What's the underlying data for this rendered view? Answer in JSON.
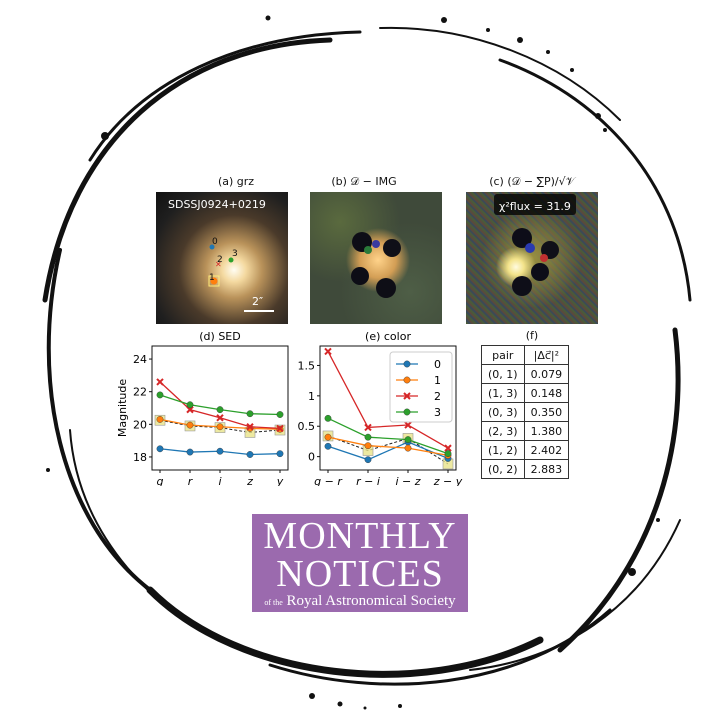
{
  "panels": {
    "a": {
      "title": "(a) grz",
      "object_label": "SDSSJ0924+0219",
      "scale_label": "2″",
      "source_labels": [
        "0",
        "1",
        "2",
        "3"
      ]
    },
    "b": {
      "title": "(b) 𝒟 − IMG"
    },
    "c": {
      "title": "(c) (𝒟 − ∑P)/√𝒱",
      "chi_label": "χ²flux = 31.9"
    },
    "f": {
      "title": "(f)"
    }
  },
  "table": {
    "headers": [
      "pair",
      "|Δc⃗|²"
    ],
    "rows": [
      [
        "(0, 1)",
        "0.079"
      ],
      [
        "(1, 3)",
        "0.148"
      ],
      [
        "(0, 3)",
        "0.350"
      ],
      [
        "(2, 3)",
        "1.380"
      ],
      [
        "(1, 2)",
        "2.402"
      ],
      [
        "(0, 2)",
        "2.883"
      ]
    ]
  },
  "logo": {
    "line1": "MONTHLY",
    "line2": "NOTICES",
    "line3_small": "of the",
    "line3": "Royal Astronomical Society"
  },
  "colors": {
    "series": [
      "#1f77b4",
      "#ff7f0e",
      "#d62728",
      "#2ca02c"
    ],
    "logo_bg": "#9b6aae"
  },
  "chart_data": [
    {
      "type": "line",
      "title": "(d) SED",
      "xlabel": "",
      "ylabel": "Magnitude",
      "categories": [
        "g",
        "r",
        "i",
        "z",
        "y"
      ],
      "ylim": [
        17.2,
        24.8
      ],
      "y_inverted": false,
      "yticks": [
        18,
        20,
        22,
        24
      ],
      "series": [
        {
          "name": "0",
          "values": [
            18.5,
            18.3,
            18.35,
            18.15,
            18.2
          ]
        },
        {
          "name": "1",
          "values": [
            20.3,
            19.95,
            19.85,
            19.75,
            19.7
          ]
        },
        {
          "name": "2",
          "values": [
            22.6,
            20.9,
            20.4,
            19.85,
            19.75
          ]
        },
        {
          "name": "3",
          "values": [
            21.8,
            21.2,
            20.9,
            20.65,
            20.6
          ]
        }
      ],
      "model_values": [
        20.25,
        19.9,
        19.8,
        19.5,
        19.65
      ]
    },
    {
      "type": "line",
      "title": "(e) color",
      "xlabel": "",
      "ylabel": "",
      "categories": [
        "g − r",
        "r − i",
        "i − z",
        "z − y"
      ],
      "ylim": [
        -0.22,
        1.82
      ],
      "yticks": [
        0.0,
        0.5,
        1.0,
        1.5
      ],
      "legend_position": "top-right",
      "series": [
        {
          "name": "0",
          "values": [
            0.17,
            -0.05,
            0.24,
            -0.03
          ]
        },
        {
          "name": "1",
          "values": [
            0.32,
            0.18,
            0.14,
            0.02
          ]
        },
        {
          "name": "2",
          "values": [
            1.73,
            0.48,
            0.52,
            0.14
          ]
        },
        {
          "name": "3",
          "values": [
            0.63,
            0.32,
            0.28,
            0.05
          ]
        }
      ],
      "model_values": [
        0.34,
        0.1,
        0.3,
        -0.12
      ]
    }
  ]
}
